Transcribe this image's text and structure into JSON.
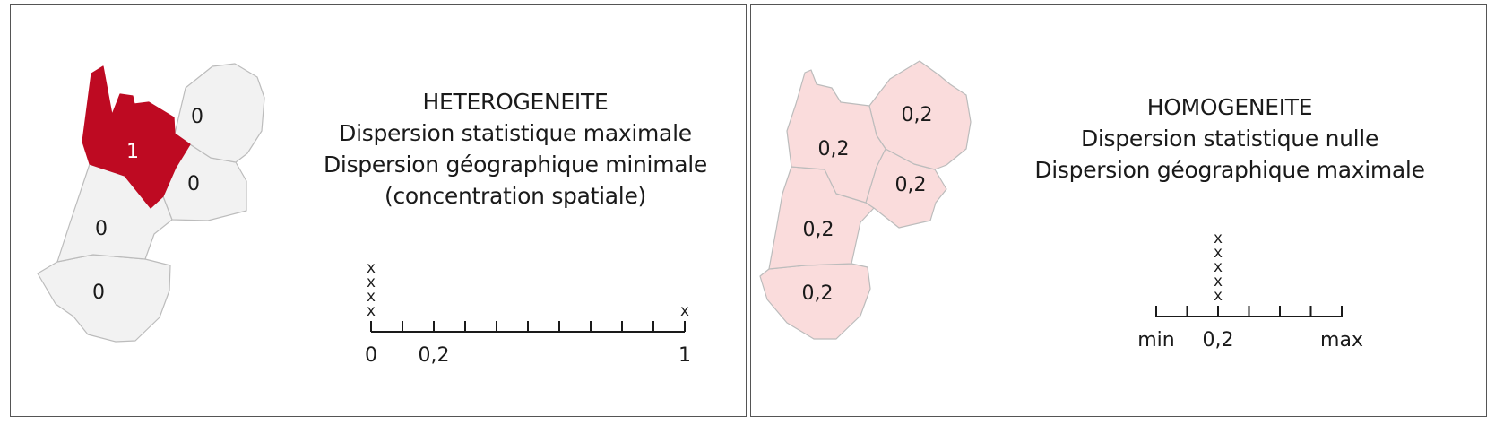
{
  "colors": {
    "region_selected": "#be0a22",
    "region_empty": "#f2f2f2",
    "region_even": "#fadcdc",
    "region_stroke": "#bcbcbc",
    "axis": "#1a1a1a",
    "frame": "#555555"
  },
  "left_panel": {
    "title_lines": [
      "HETEROGENEITE",
      "Dispersion statistique maximale",
      "Dispersion géographique minimale",
      "(concentration spatiale)"
    ],
    "regions": [
      {
        "id": "center-north",
        "value": "1",
        "highlighted": true
      },
      {
        "id": "north-east",
        "value": "0",
        "highlighted": false
      },
      {
        "id": "middle-east",
        "value": "0",
        "highlighted": false
      },
      {
        "id": "middle-west",
        "value": "0",
        "highlighted": false
      },
      {
        "id": "south",
        "value": "0",
        "highlighted": false
      }
    ],
    "axis": {
      "ticks": 10,
      "labels": {
        "start": "0",
        "second": "0,2",
        "end": "1"
      },
      "x_marks": [
        {
          "tick_index": 0,
          "count": 4,
          "glyph": "x"
        },
        {
          "tick_index": 10,
          "count": 1,
          "glyph": "x"
        }
      ]
    }
  },
  "right_panel": {
    "title_lines": [
      "HOMOGENEITE",
      "Dispersion statistique nulle",
      "Dispersion géographique maximale"
    ],
    "regions": [
      {
        "id": "north-east",
        "value": "0,2",
        "highlighted": false
      },
      {
        "id": "north-west",
        "value": "0,2",
        "highlighted": false
      },
      {
        "id": "middle-east",
        "value": "0,2",
        "highlighted": false
      },
      {
        "id": "middle-west",
        "value": "0,2",
        "highlighted": false
      },
      {
        "id": "south",
        "value": "0,2",
        "highlighted": false
      }
    ],
    "axis": {
      "ticks": 6,
      "labels": {
        "start": "min",
        "second": "0,2",
        "end": "max"
      },
      "x_marks": [
        {
          "tick_index": 2,
          "count": 5,
          "glyph": "x"
        }
      ]
    }
  }
}
